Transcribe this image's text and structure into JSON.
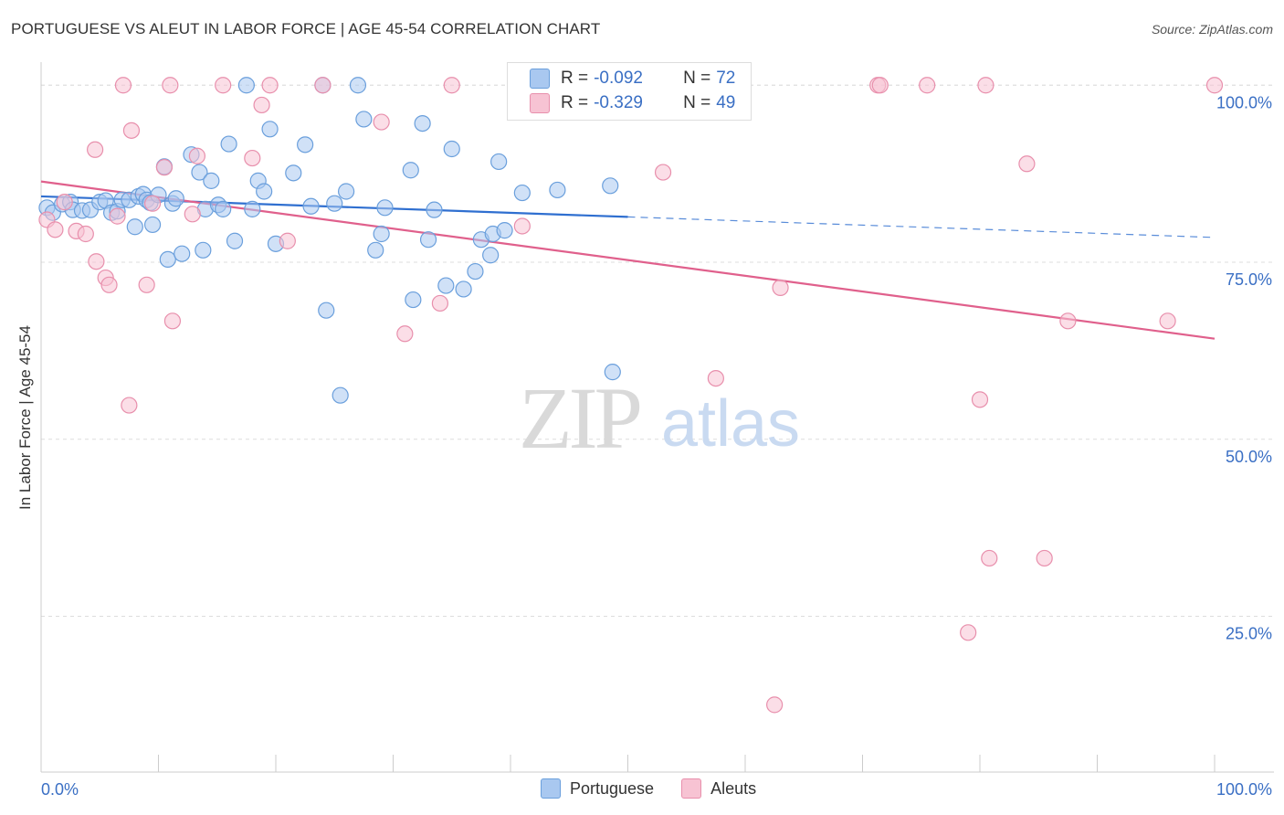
{
  "title": "PORTUGUESE VS ALEUT IN LABOR FORCE | AGE 45-54 CORRELATION CHART",
  "source": "Source: ZipAtlas.com",
  "watermark": {
    "zip": "ZIP",
    "atlas": "atlas"
  },
  "legend": {
    "rows": [
      {
        "r_label": "R = ",
        "r_value": "-0.092",
        "n_label": "N = ",
        "n_value": "72",
        "color": "#a9c8f0"
      },
      {
        "r_label": "R = ",
        "r_value": "-0.329",
        "n_label": "N = ",
        "n_value": "49",
        "color": "#f5b5c9"
      }
    ]
  },
  "bottom_legend": [
    {
      "label": "Portuguese",
      "color": "#a9c8f0"
    },
    {
      "label": "Aleuts",
      "color": "#f5b5c9"
    }
  ],
  "chart_data": {
    "type": "scatter",
    "title": "PORTUGUESE VS ALEUT IN LABOR FORCE | AGE 45-54 CORRELATION CHART",
    "xlabel": "",
    "ylabel": "In Labor Force | Age 45-54",
    "xlim": [
      0,
      100
    ],
    "ylim": [
      3,
      103
    ],
    "x_tick_labels": [
      "0.0%",
      "100.0%"
    ],
    "y_ticks": [
      25,
      50,
      75,
      100
    ],
    "y_tick_labels": [
      "25.0%",
      "50.0%",
      "75.0%",
      "100.0%"
    ],
    "grid": true,
    "colors": {
      "portuguese_fill": "#a9c8f0",
      "portuguese_stroke": "#6a9fdc",
      "portuguese_line": "#2f6fd0",
      "aleuts_fill": "#f7c3d3",
      "aleuts_stroke": "#e88fac",
      "aleuts_line": "#e0608c",
      "tick_label": "#3a6fc4"
    },
    "series": [
      {
        "name": "Portuguese",
        "trend": {
          "x": [
            0,
            100
          ],
          "y": [
            84.3,
            78.5
          ],
          "solid_until": 50
        },
        "points": [
          [
            0.5,
            82.7
          ],
          [
            1.0,
            82.0
          ],
          [
            1.8,
            83.2
          ],
          [
            2.5,
            83.5
          ],
          [
            2.7,
            82.4
          ],
          [
            3.5,
            82.3
          ],
          [
            4.2,
            82.4
          ],
          [
            5.0,
            83.5
          ],
          [
            5.5,
            83.7
          ],
          [
            6.0,
            82.0
          ],
          [
            6.5,
            82.2
          ],
          [
            6.9,
            83.8
          ],
          [
            7.5,
            83.8
          ],
          [
            8.0,
            80.0
          ],
          [
            8.3,
            84.3
          ],
          [
            8.7,
            84.6
          ],
          [
            9.0,
            83.8
          ],
          [
            9.3,
            83.4
          ],
          [
            9.5,
            80.3
          ],
          [
            10.0,
            84.5
          ],
          [
            10.5,
            88.5
          ],
          [
            10.8,
            75.4
          ],
          [
            11.2,
            83.3
          ],
          [
            11.5,
            84.0
          ],
          [
            12.0,
            76.2
          ],
          [
            12.8,
            90.2
          ],
          [
            13.5,
            87.7
          ],
          [
            13.8,
            76.7
          ],
          [
            14.0,
            82.5
          ],
          [
            14.5,
            86.5
          ],
          [
            15.1,
            83.1
          ],
          [
            15.5,
            82.5
          ],
          [
            16.0,
            91.7
          ],
          [
            16.5,
            78.0
          ],
          [
            17.5,
            100.0
          ],
          [
            18.0,
            82.5
          ],
          [
            18.5,
            86.5
          ],
          [
            19.0,
            85.0
          ],
          [
            19.5,
            93.8
          ],
          [
            20.0,
            77.6
          ],
          [
            21.5,
            87.6
          ],
          [
            22.5,
            91.6
          ],
          [
            23.0,
            82.9
          ],
          [
            24.0,
            100.0
          ],
          [
            24.3,
            68.2
          ],
          [
            25.0,
            83.3
          ],
          [
            25.5,
            56.2
          ],
          [
            26.0,
            85.0
          ],
          [
            27.0,
            100.0
          ],
          [
            27.5,
            95.2
          ],
          [
            28.5,
            76.7
          ],
          [
            29.0,
            79.0
          ],
          [
            29.3,
            82.7
          ],
          [
            31.5,
            88.0
          ],
          [
            31.7,
            69.7
          ],
          [
            32.5,
            94.6
          ],
          [
            33.0,
            78.2
          ],
          [
            33.5,
            82.4
          ],
          [
            34.5,
            71.7
          ],
          [
            35.0,
            91.0
          ],
          [
            36.0,
            71.2
          ],
          [
            37.0,
            73.7
          ],
          [
            37.5,
            78.2
          ],
          [
            38.3,
            76.0
          ],
          [
            38.5,
            79.0
          ],
          [
            39.0,
            89.2
          ],
          [
            39.5,
            79.5
          ],
          [
            41.0,
            84.8
          ],
          [
            44.0,
            85.2
          ],
          [
            46.0,
            100.0
          ],
          [
            48.5,
            85.8
          ],
          [
            48.7,
            59.5
          ]
        ]
      },
      {
        "name": "Aleuts",
        "trend": {
          "x": [
            0,
            100
          ],
          "y": [
            86.4,
            64.2
          ]
        },
        "points": [
          [
            0.5,
            81.0
          ],
          [
            1.2,
            79.6
          ],
          [
            2.0,
            83.5
          ],
          [
            3.0,
            79.4
          ],
          [
            3.8,
            79.0
          ],
          [
            4.6,
            90.9
          ],
          [
            4.7,
            75.1
          ],
          [
            5.5,
            72.8
          ],
          [
            5.8,
            71.8
          ],
          [
            6.5,
            81.5
          ],
          [
            7.0,
            100.0
          ],
          [
            7.5,
            54.8
          ],
          [
            7.7,
            93.6
          ],
          [
            9.0,
            71.8
          ],
          [
            9.5,
            83.3
          ],
          [
            10.5,
            88.4
          ],
          [
            11.0,
            100.0
          ],
          [
            11.2,
            66.7
          ],
          [
            12.9,
            81.8
          ],
          [
            13.3,
            90.0
          ],
          [
            15.5,
            100.0
          ],
          [
            18.0,
            89.7
          ],
          [
            18.8,
            97.2
          ],
          [
            19.5,
            100.0
          ],
          [
            21.0,
            78.0
          ],
          [
            24.0,
            100.0
          ],
          [
            29.0,
            94.8
          ],
          [
            31.0,
            64.9
          ],
          [
            34.0,
            69.2
          ],
          [
            35.0,
            100.0
          ],
          [
            41.0,
            80.1
          ],
          [
            46.0,
            100.0
          ],
          [
            53.0,
            87.7
          ],
          [
            55.5,
            100.0
          ],
          [
            57.5,
            58.6
          ],
          [
            62.5,
            12.5
          ],
          [
            63.0,
            71.4
          ],
          [
            71.3,
            100.0
          ],
          [
            71.5,
            100.0
          ],
          [
            75.5,
            100.0
          ],
          [
            79.0,
            22.7
          ],
          [
            80.0,
            55.6
          ],
          [
            80.5,
            100.0
          ],
          [
            80.8,
            33.2
          ],
          [
            84.0,
            88.9
          ],
          [
            85.5,
            33.2
          ],
          [
            87.5,
            66.7
          ],
          [
            96.0,
            66.7
          ],
          [
            100.0,
            100.0
          ]
        ]
      }
    ]
  }
}
